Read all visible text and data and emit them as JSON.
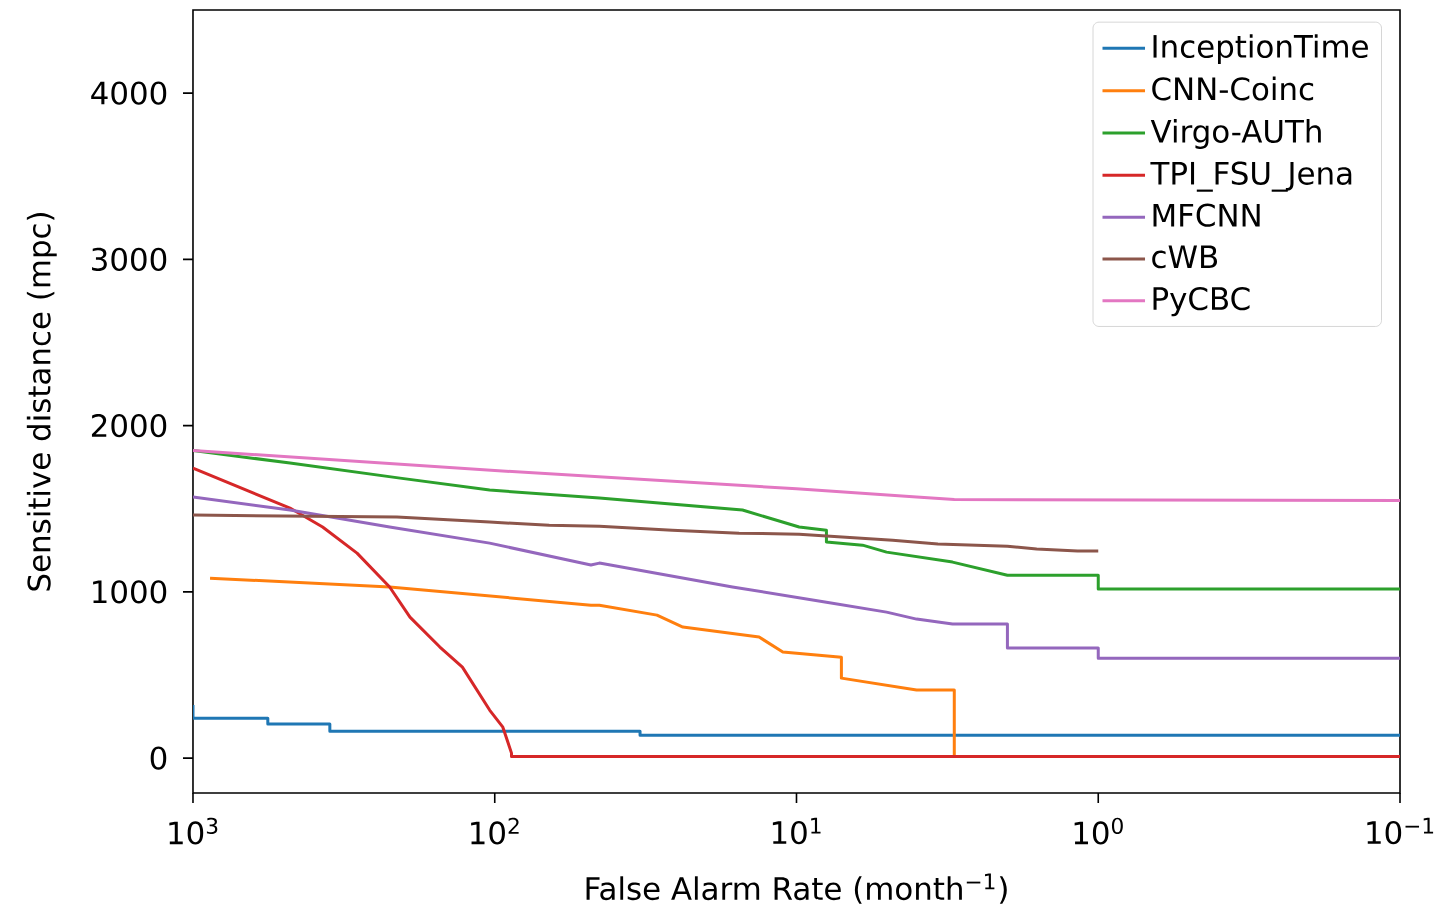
{
  "chart_data": {
    "type": "line",
    "xlabel": "False Alarm Rate (month$^{−1}$)",
    "ylabel": "Sensitive distance (mpc)",
    "log": "x",
    "legend": "top right",
    "grid": false,
    "xlim": [
      1000,
      0.1
    ],
    "ylim": [
      -210,
      4500
    ],
    "xticks": [
      {
        "value": 1000,
        "label": "10$^{3}$"
      },
      {
        "value": 100,
        "label": "10$^{2}$"
      },
      {
        "value": 10,
        "label": "10$^{1}$"
      },
      {
        "value": 1,
        "label": "10$^{0}$"
      },
      {
        "value": 0.1,
        "label": "10$^{−1}$"
      }
    ],
    "yticks": [
      0,
      1000,
      2000,
      3000,
      4000
    ],
    "series": [
      {
        "name": "InceptionTime",
        "color": "#1f77b4",
        "x": [
          1000,
          1000,
          565,
          565,
          352,
          352,
          33,
          33,
          0.1
        ],
        "values": [
          320,
          240,
          240,
          205,
          205,
          162,
          162,
          138,
          138
        ]
      },
      {
        "name": "CNN-Coinc",
        "color": "#ff7f0e",
        "x": [
          878,
          223,
          48,
          45,
          29,
          23.8,
          13.3,
          11.1,
          7.1,
          7.1,
          4.0,
          3.0,
          3.0
        ],
        "values": [
          1082,
          1029,
          920,
          920,
          860,
          788,
          728,
          638,
          607,
          481,
          409,
          409,
          0
        ]
      },
      {
        "name": "Virgo-AUTh",
        "color": "#2ca02c",
        "x": [
          1000,
          477,
          206,
          104,
          45,
          15.1,
          9.8,
          7.96,
          7.96,
          6.04,
          5.03,
          3.04,
          2.0,
          1.0,
          1.0,
          0.1
        ],
        "values": [
          1850,
          1775,
          1684,
          1612,
          1564,
          1492,
          1390,
          1370,
          1300,
          1281,
          1239,
          1179,
          1100,
          1100,
          1017,
          1017
        ]
      },
      {
        "name": "TPI_FSU_Jena",
        "color": "#d62728",
        "x": [
          1000,
          477,
          372,
          286,
          223,
          191,
          152,
          128,
          104,
          94,
          88,
          88,
          0.1
        ],
        "values": [
          1744,
          1504,
          1390,
          1233,
          1029,
          848,
          668,
          547,
          289,
          186,
          30,
          10,
          10
        ]
      },
      {
        "name": "MFCNN",
        "color": "#9467bd",
        "x": [
          1000,
          477,
          223,
          104,
          48,
          45,
          16.3,
          7.96,
          5.03,
          4.0,
          3.04,
          2.0,
          2.0,
          1.0,
          1.0,
          0.1
        ],
        "values": [
          1570,
          1492,
          1390,
          1293,
          1161,
          1173,
          1029,
          938,
          878,
          836,
          806,
          806,
          662,
          662,
          601,
          601
        ]
      },
      {
        "name": "cWB",
        "color": "#8c564b",
        "x": [
          1000,
          211,
          104,
          66,
          45,
          25.8,
          15.5,
          9.8,
          4.8,
          3.4,
          2.0,
          1.6,
          1.17,
          1.0
        ],
        "values": [
          1462,
          1450,
          1420,
          1400,
          1395,
          1371,
          1353,
          1347,
          1311,
          1288,
          1275,
          1258,
          1245,
          1245
        ]
      },
      {
        "name": "PyCBC",
        "color": "#e377c2",
        "x": [
          1000,
          100,
          10,
          4,
          3,
          0.1
        ],
        "values": [
          1850,
          1730,
          1620,
          1570,
          1555,
          1550
        ]
      }
    ]
  }
}
